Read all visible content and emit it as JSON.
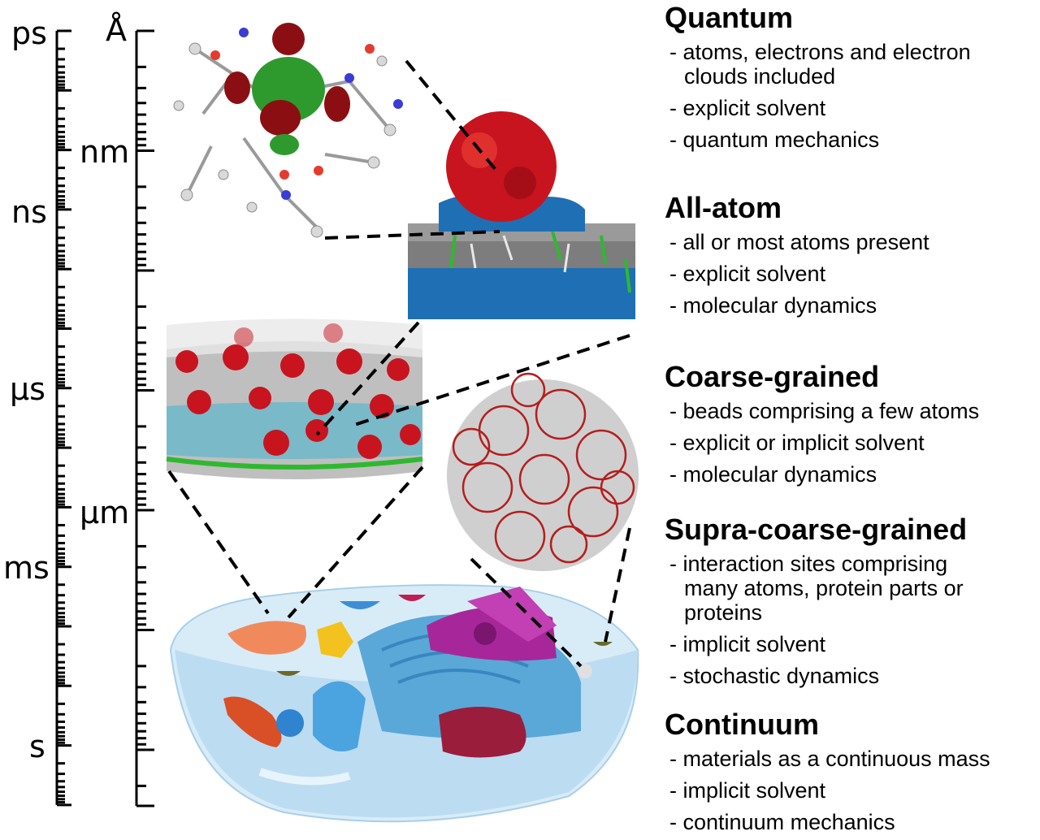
{
  "time_axis": {
    "labels": [
      {
        "text": "ps",
        "exponent": -12
      },
      {
        "text": "ns",
        "exponent": -9
      },
      {
        "text": "μs",
        "exponent": -6
      },
      {
        "text": "ms",
        "exponent": -3
      },
      {
        "text": "s",
        "exponent": 0
      }
    ]
  },
  "length_axis": {
    "labels": [
      {
        "text": "Å",
        "exponent": -10
      },
      {
        "text": "nm",
        "exponent": -9
      },
      {
        "text": "μm",
        "exponent": -6
      }
    ]
  },
  "levels": [
    {
      "title": "Quantum",
      "bullets": [
        "atoms, electrons and electron clouds included",
        "explicit solvent",
        "quantum mechanics"
      ]
    },
    {
      "title": "All-atom",
      "bullets": [
        "all or most atoms present",
        "explicit solvent",
        "molecular dynamics"
      ]
    },
    {
      "title": "Coarse-grained",
      "bullets": [
        "beads comprising a few atoms",
        "explicit or implicit solvent",
        "molecular dynamics"
      ]
    },
    {
      "title": "Supra-coarse-grained",
      "bullets": [
        "interaction sites comprising many atoms, protein parts or proteins",
        "implicit solvent",
        "stochastic dynamics"
      ]
    },
    {
      "title": "Continuum",
      "bullets": [
        "materials as a continuous mass",
        "implicit solvent",
        "continuum mechanics"
      ]
    }
  ],
  "colors": {
    "protein_red": "#c8141e",
    "lipid_grey": "#8a8a8a",
    "solvent_blue": "#1f6fb4",
    "headgroup_green": "#2fb82f",
    "cell_blue": "#cfe6f7",
    "nucleus_magenta": "#a7279a"
  }
}
